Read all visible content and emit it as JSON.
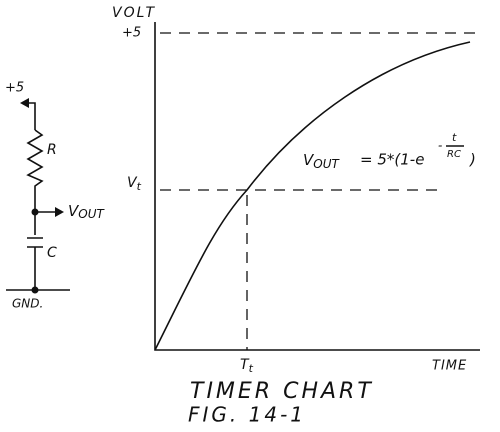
{
  "circuit": {
    "supply": "+5",
    "resistor": "R",
    "output": {
      "base": "V",
      "sub": "OUT"
    },
    "capacitor": "C",
    "ground": "GND."
  },
  "chart": {
    "y_label": "VOLT",
    "y_top": "+5",
    "y_threshold": {
      "base": "V",
      "sub": "t"
    },
    "x_threshold": {
      "base": "T",
      "sub": "t"
    },
    "x_label": "TIME",
    "equation": {
      "lhs_base": "V",
      "lhs_sub": "OUT",
      "rhs": "= 5*(1-e",
      "exp_sign": "-",
      "exp_num": "t",
      "exp_den": "RC",
      "close": ")"
    }
  },
  "caption": {
    "title": "TIMER CHART",
    "figure": "FIG. 14-1"
  }
}
